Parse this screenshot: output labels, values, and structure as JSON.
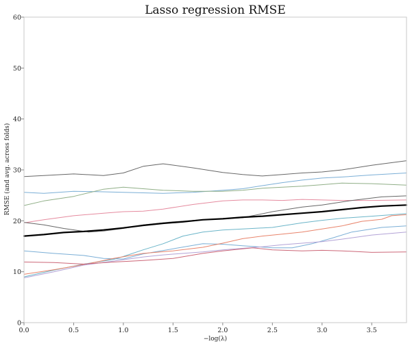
{
  "chart_data": {
    "type": "line",
    "title": "Lasso regression RMSE",
    "xlabel": "−log(λ)",
    "ylabel": "RMSE (and avg. across folds)",
    "xlim": [
      0,
      3.85
    ],
    "ylim": [
      0,
      60
    ],
    "x_ticks": [
      0.0,
      0.5,
      1.0,
      1.5,
      2.0,
      2.5,
      3.0,
      3.5
    ],
    "x_tick_labels": [
      "0.0",
      "0.5",
      "1.0",
      "1.5",
      "2.0",
      "2.5",
      "3.0",
      "3.5"
    ],
    "y_ticks": [
      0,
      10,
      20,
      30,
      40,
      50,
      60
    ],
    "y_tick_labels": [
      "0",
      "10",
      "20",
      "30",
      "40",
      "50",
      "60"
    ],
    "grid": false,
    "series": [
      {
        "color": "#666666",
        "width": 1,
        "x": [
          0,
          0.2,
          0.5,
          0.8,
          1.0,
          1.2,
          1.4,
          1.7,
          2.0,
          2.2,
          2.4,
          2.6,
          2.8,
          3.0,
          3.2,
          3.5,
          3.85
        ],
        "y": [
          28.7,
          28.9,
          29.2,
          28.9,
          29.4,
          30.7,
          31.2,
          30.4,
          29.5,
          29.1,
          28.8,
          29.1,
          29.4,
          29.6,
          30.0,
          30.9,
          31.8
        ]
      },
      {
        "color": "#7aaed6",
        "width": 1,
        "x": [
          0,
          0.2,
          0.5,
          0.8,
          1.0,
          1.2,
          1.4,
          1.7,
          2.0,
          2.2,
          2.4,
          2.6,
          2.8,
          3.0,
          3.2,
          3.5,
          3.85
        ],
        "y": [
          25.6,
          25.4,
          25.8,
          25.7,
          25.6,
          25.5,
          25.4,
          25.6,
          26.0,
          26.3,
          26.9,
          27.5,
          28.0,
          28.4,
          28.6,
          29.0,
          29.4
        ]
      },
      {
        "color": "#8fae86",
        "width": 1,
        "x": [
          0,
          0.2,
          0.5,
          0.8,
          1.0,
          1.2,
          1.4,
          1.7,
          2.0,
          2.2,
          2.4,
          2.6,
          2.8,
          3.0,
          3.2,
          3.5,
          3.85
        ],
        "y": [
          23.0,
          23.9,
          24.8,
          26.2,
          26.6,
          26.3,
          26.0,
          25.8,
          25.8,
          26.0,
          26.4,
          26.6,
          26.8,
          27.1,
          27.4,
          27.3,
          27.0
        ]
      },
      {
        "color": "#e58a9e",
        "width": 1,
        "x": [
          0,
          0.2,
          0.5,
          0.8,
          1.0,
          1.2,
          1.4,
          1.7,
          2.0,
          2.2,
          2.4,
          2.6,
          2.8,
          3.0,
          3.2,
          3.5,
          3.85
        ],
        "y": [
          19.6,
          20.2,
          21.0,
          21.5,
          21.8,
          21.9,
          22.3,
          23.2,
          23.9,
          24.1,
          24.1,
          24.0,
          24.2,
          24.1,
          24.0,
          24.0,
          24.1
        ]
      },
      {
        "color": "#666666",
        "width": 1,
        "x": [
          0,
          0.2,
          0.4,
          0.65,
          0.8,
          1.0,
          1.2,
          1.5,
          1.8,
          2.0,
          2.2,
          2.3,
          2.5,
          2.8,
          3.0,
          3.3,
          3.6,
          3.85
        ],
        "y": [
          19.7,
          19.2,
          18.5,
          17.8,
          18.0,
          18.5,
          19.2,
          19.8,
          20.2,
          20.4,
          20.6,
          21.0,
          21.8,
          22.7,
          23.1,
          24.0,
          24.7,
          24.9
        ]
      },
      {
        "color": "#000000",
        "width": 2.2,
        "x": [
          0,
          0.2,
          0.4,
          0.6,
          0.8,
          1.0,
          1.2,
          1.4,
          1.6,
          1.8,
          2.0,
          2.2,
          2.4,
          2.6,
          2.8,
          3.0,
          3.2,
          3.4,
          3.6,
          3.85
        ],
        "y": [
          17.0,
          17.3,
          17.7,
          17.9,
          18.2,
          18.6,
          19.1,
          19.5,
          19.8,
          20.2,
          20.4,
          20.7,
          20.9,
          21.2,
          21.5,
          21.8,
          22.2,
          22.6,
          22.9,
          23.1
        ]
      },
      {
        "color": "#6ab4c8",
        "width": 1,
        "x": [
          0,
          0.3,
          0.6,
          0.9,
          1.0,
          1.2,
          1.4,
          1.6,
          1.8,
          2.0,
          2.2,
          2.5,
          2.8,
          3.0,
          3.2,
          3.5,
          3.85
        ],
        "y": [
          9.0,
          10.3,
          11.5,
          12.4,
          13.0,
          14.3,
          15.5,
          17.0,
          17.8,
          18.2,
          18.4,
          18.7,
          19.6,
          20.1,
          20.5,
          20.9,
          21.4
        ]
      },
      {
        "color": "#7aaed6",
        "width": 1,
        "x": [
          0,
          0.3,
          0.6,
          0.8,
          1.0,
          1.2,
          1.5,
          1.8,
          2.0,
          2.2,
          2.5,
          2.7,
          2.9,
          3.1,
          3.3,
          3.6,
          3.85
        ],
        "y": [
          14.1,
          13.6,
          13.2,
          12.6,
          12.5,
          13.5,
          14.5,
          15.5,
          15.4,
          15.1,
          14.7,
          14.7,
          15.5,
          16.6,
          17.8,
          18.7,
          19.0
        ]
      },
      {
        "color": "#e8836a",
        "width": 1,
        "x": [
          0,
          0.3,
          0.6,
          0.9,
          1.2,
          1.5,
          1.8,
          2.0,
          2.2,
          2.4,
          2.6,
          2.8,
          3.0,
          3.2,
          3.4,
          3.6,
          3.7,
          3.85
        ],
        "y": [
          9.5,
          10.4,
          11.4,
          12.6,
          13.6,
          14.1,
          14.8,
          15.6,
          16.5,
          17.0,
          17.4,
          17.8,
          18.4,
          19.0,
          19.9,
          20.3,
          21.0,
          21.2
        ]
      },
      {
        "color": "#b2a2d6",
        "width": 1,
        "x": [
          0,
          0.3,
          0.6,
          0.9,
          1.2,
          1.4,
          1.6,
          1.8,
          2.0,
          2.2,
          2.4,
          2.6,
          2.8,
          3.0,
          3.2,
          3.5,
          3.85
        ],
        "y": [
          8.8,
          10.0,
          11.3,
          12.1,
          12.9,
          13.3,
          13.6,
          13.9,
          14.3,
          14.6,
          14.9,
          15.3,
          15.6,
          15.9,
          16.4,
          17.2,
          17.8
        ]
      },
      {
        "color": "#cc6677",
        "width": 1,
        "x": [
          0,
          0.3,
          0.6,
          0.9,
          1.2,
          1.5,
          1.8,
          2.0,
          2.3,
          2.5,
          2.8,
          3.0,
          3.2,
          3.5,
          3.85
        ],
        "y": [
          11.9,
          11.8,
          11.5,
          11.9,
          12.2,
          12.6,
          13.6,
          14.1,
          14.7,
          14.3,
          14.1,
          14.2,
          14.1,
          13.8,
          13.9
        ]
      }
    ]
  }
}
